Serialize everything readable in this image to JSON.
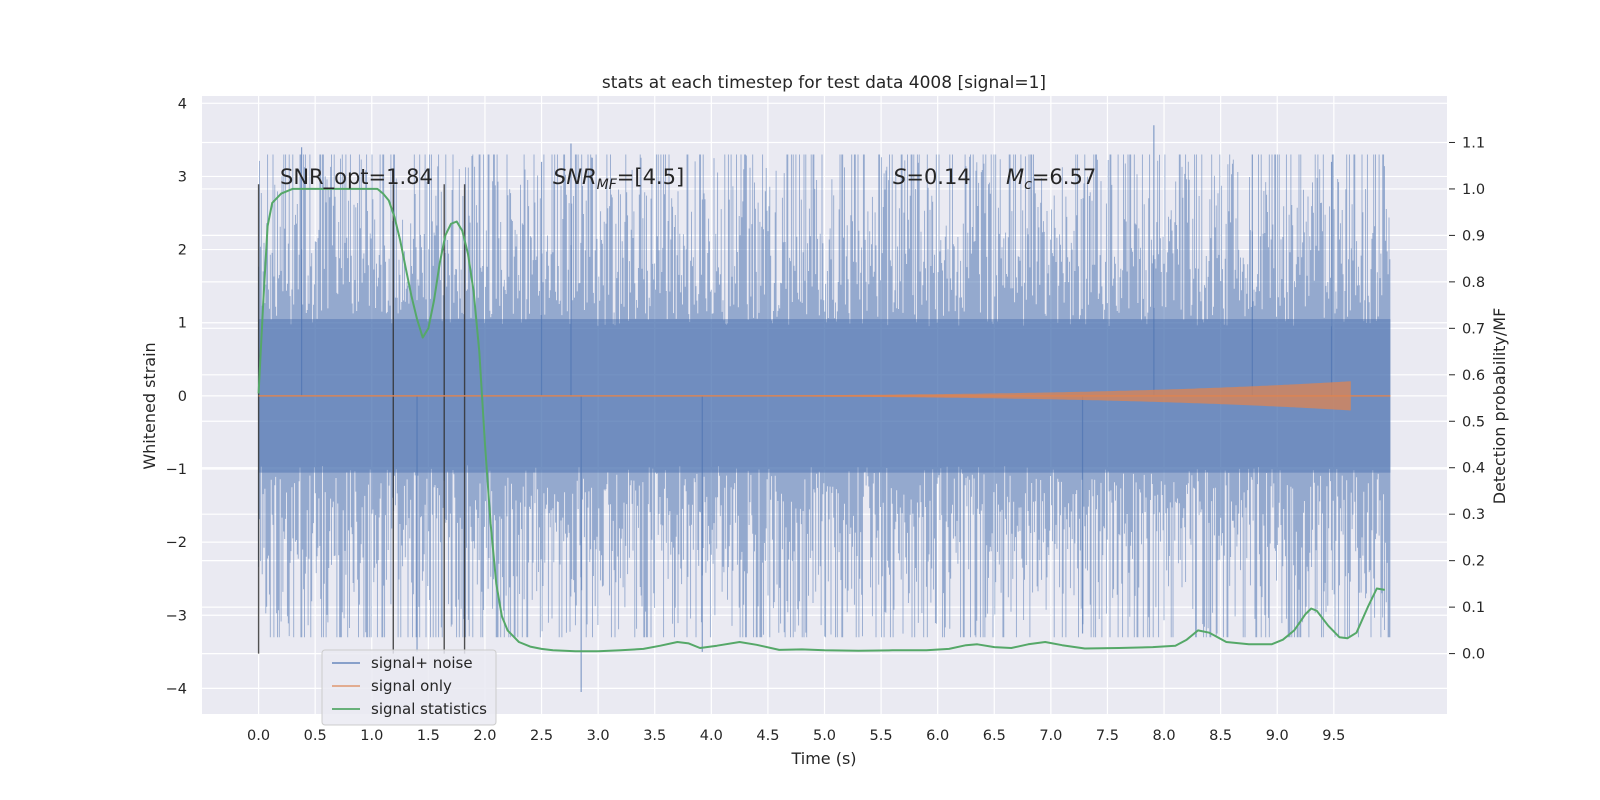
{
  "chart_data": {
    "type": "line",
    "title": "stats at each timestep for test data 4008 [signal=1]",
    "xlabel": "Time (s)",
    "ylabel": "Whitened strain",
    "y2label": "Detection probability/MF",
    "xlim": [
      -0.5,
      10.5
    ],
    "ylim": [
      -4.35,
      4.1
    ],
    "y2lim": [
      -0.13,
      1.2
    ],
    "grid": true,
    "legend_position": "lower-left",
    "x_ticks": [
      0.0,
      0.5,
      1.0,
      1.5,
      2.0,
      2.5,
      3.0,
      3.5,
      4.0,
      4.5,
      5.0,
      5.5,
      6.0,
      6.5,
      7.0,
      7.5,
      8.0,
      8.5,
      9.0,
      9.5
    ],
    "x_tick_labels": [
      "0.0",
      "0.5",
      "1.0",
      "1.5",
      "2.0",
      "2.5",
      "3.0",
      "3.5",
      "4.0",
      "4.5",
      "5.0",
      "5.5",
      "6.0",
      "6.5",
      "7.0",
      "7.5",
      "8.0",
      "8.5",
      "9.0",
      "9.5"
    ],
    "y_ticks": [
      4,
      3,
      2,
      1,
      0,
      -1,
      -2,
      -3,
      -4
    ],
    "y_tick_labels": [
      "4",
      "3",
      "2",
      "1",
      "0",
      "−1",
      "−2",
      "−3",
      "−4"
    ],
    "y2_ticks": [
      1.1,
      1.0,
      0.9,
      0.8,
      0.7,
      0.6,
      0.5,
      0.4,
      0.3,
      0.2,
      0.1,
      0.0
    ],
    "y2_tick_labels": [
      "1.1",
      "1.0",
      "0.9",
      "0.8",
      "0.7",
      "0.6",
      "0.5",
      "0.4",
      "0.3",
      "0.2",
      "0.1",
      "0.0"
    ],
    "annotations": {
      "snr_opt": "SNR_opt=1.84",
      "snr_mf_sym": "SNR",
      "snr_mf_sub": "MF",
      "snr_mf_val": "=[4.5]",
      "s_sym": "S",
      "s_val": "=0.14",
      "mc_sym": "M",
      "mc_sub": "c",
      "mc_val": "=6.57"
    },
    "legend": [
      "signal+ noise",
      "signal only",
      "signal statistics"
    ],
    "series": [
      {
        "name": "signal+ noise",
        "color": "#4c72b0",
        "kind": "noise",
        "x_range": [
          0.0,
          10.0
        ],
        "typical_envelope": 2.1,
        "spikes": [
          {
            "x": 0.38,
            "y": 3.4
          },
          {
            "x": 1.4,
            "y": -3.5
          },
          {
            "x": 2.5,
            "y": 3.2
          },
          {
            "x": 2.76,
            "y": 3.45
          },
          {
            "x": 2.85,
            "y": -4.05
          },
          {
            "x": 3.92,
            "y": -3.5
          },
          {
            "x": 7.28,
            "y": -3.25
          },
          {
            "x": 7.91,
            "y": 3.7
          },
          {
            "x": 8.78,
            "y": 3.3
          },
          {
            "x": 9.48,
            "y": 3.2
          }
        ]
      },
      {
        "name": "signal only",
        "color": "#dd8452",
        "kind": "chirp",
        "x_range": [
          0.0,
          9.65
        ],
        "amplitude_end": 0.2
      },
      {
        "name": "signal statistics",
        "color": "#55a868",
        "axis": "right",
        "x": [
          0.0,
          0.04,
          0.08,
          0.12,
          0.2,
          0.3,
          0.5,
          0.7,
          0.9,
          1.0,
          1.05,
          1.1,
          1.15,
          1.2,
          1.25,
          1.3,
          1.35,
          1.4,
          1.45,
          1.5,
          1.55,
          1.6,
          1.65,
          1.7,
          1.75,
          1.8,
          1.85,
          1.9,
          1.95,
          2.0,
          2.05,
          2.1,
          2.15,
          2.2,
          2.3,
          2.4,
          2.5,
          2.6,
          2.8,
          3.0,
          3.2,
          3.4,
          3.55,
          3.7,
          3.8,
          3.9,
          4.05,
          4.25,
          4.4,
          4.6,
          4.8,
          5.0,
          5.3,
          5.6,
          5.9,
          6.1,
          6.25,
          6.35,
          6.5,
          6.65,
          6.8,
          6.95,
          7.1,
          7.3,
          7.6,
          7.9,
          8.1,
          8.2,
          8.3,
          8.4,
          8.55,
          8.75,
          8.95,
          9.05,
          9.15,
          9.25,
          9.3,
          9.35,
          9.45,
          9.55,
          9.62,
          9.7,
          9.8,
          9.88,
          9.95
        ],
        "y": [
          0.56,
          0.75,
          0.92,
          0.97,
          0.99,
          1.0,
          1.0,
          1.0,
          1.0,
          1.0,
          1.0,
          0.99,
          0.975,
          0.94,
          0.89,
          0.83,
          0.77,
          0.72,
          0.68,
          0.7,
          0.76,
          0.84,
          0.9,
          0.925,
          0.93,
          0.91,
          0.86,
          0.78,
          0.65,
          0.45,
          0.28,
          0.15,
          0.08,
          0.05,
          0.025,
          0.015,
          0.01,
          0.007,
          0.005,
          0.005,
          0.007,
          0.01,
          0.017,
          0.025,
          0.022,
          0.012,
          0.017,
          0.025,
          0.019,
          0.008,
          0.009,
          0.007,
          0.006,
          0.007,
          0.007,
          0.01,
          0.018,
          0.02,
          0.014,
          0.012,
          0.02,
          0.025,
          0.018,
          0.011,
          0.012,
          0.014,
          0.017,
          0.03,
          0.05,
          0.045,
          0.025,
          0.02,
          0.02,
          0.03,
          0.05,
          0.085,
          0.097,
          0.092,
          0.06,
          0.035,
          0.033,
          0.045,
          0.1,
          0.14,
          0.137
        ]
      }
    ],
    "vertical_lines": [
      0.0,
      1.19,
      1.64,
      1.82
    ],
    "vertical_line_color": "#333333"
  }
}
